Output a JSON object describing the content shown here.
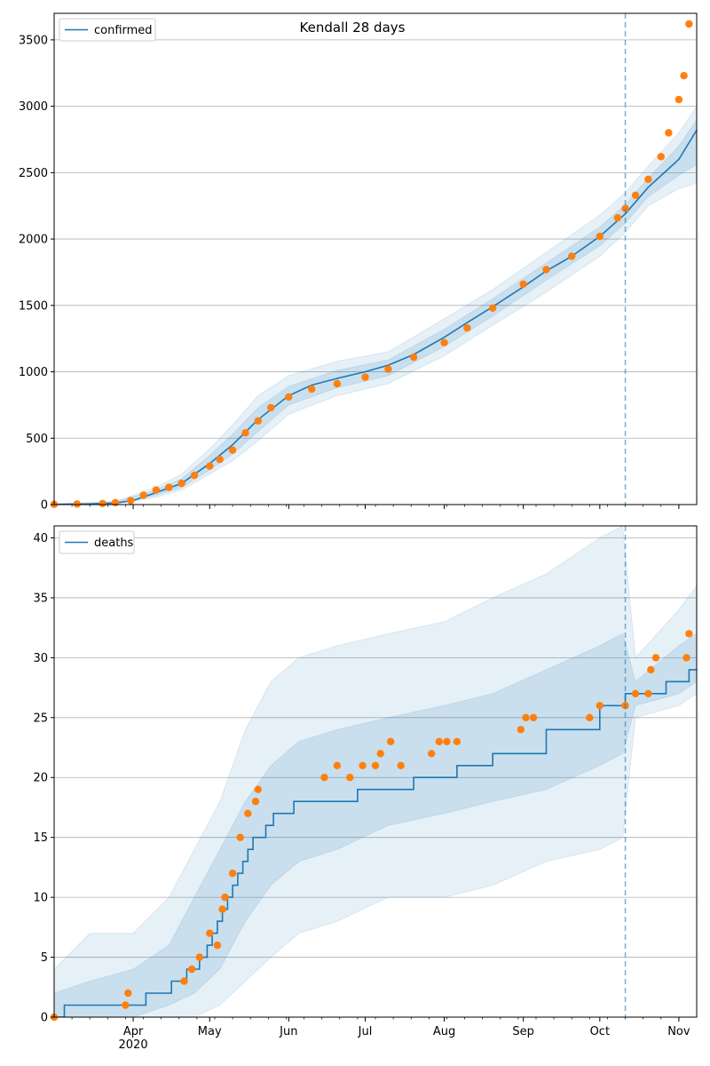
{
  "chart_data": [
    {
      "type": "line",
      "title": "Kendall 28 days",
      "xlabel": "",
      "ylabel": "",
      "xlim": [
        "2020-03-01",
        "2020-11-08"
      ],
      "ylim": [
        0,
        3700
      ],
      "yticks": [
        0,
        500,
        1000,
        1500,
        2000,
        2500,
        3000,
        3500
      ],
      "grid": "horizontal",
      "legend_position": "top-left",
      "forecast_start": "2020-10-11",
      "colors": {
        "model": "#1f77b4",
        "observed": "#ff7f0e"
      },
      "series": [
        {
          "name": "confirmed",
          "kind": "model-median",
          "x": [
            "2020-03-01",
            "2020-03-15",
            "2020-03-25",
            "2020-04-01",
            "2020-04-10",
            "2020-04-20",
            "2020-05-01",
            "2020-05-10",
            "2020-05-20",
            "2020-06-01",
            "2020-06-10",
            "2020-06-20",
            "2020-07-01",
            "2020-07-10",
            "2020-07-20",
            "2020-08-01",
            "2020-08-10",
            "2020-08-20",
            "2020-09-01",
            "2020-09-10",
            "2020-09-20",
            "2020-10-01",
            "2020-10-11",
            "2020-10-20",
            "2020-11-01",
            "2020-11-08"
          ],
          "y": [
            2,
            5,
            12,
            30,
            90,
            160,
            310,
            450,
            640,
            820,
            900,
            950,
            1000,
            1050,
            1130,
            1260,
            1370,
            1490,
            1640,
            1760,
            1870,
            2020,
            2190,
            2390,
            2600,
            2820
          ]
        },
        {
          "name": "",
          "kind": "model-band-outer",
          "x": [
            "2020-03-01",
            "2020-03-25",
            "2020-04-10",
            "2020-04-20",
            "2020-05-01",
            "2020-05-10",
            "2020-05-20",
            "2020-06-01",
            "2020-06-20",
            "2020-07-10",
            "2020-08-01",
            "2020-08-20",
            "2020-09-10",
            "2020-10-01",
            "2020-10-11",
            "2020-10-20",
            "2020-11-01",
            "2020-11-08"
          ],
          "upper": [
            5,
            25,
            130,
            230,
            420,
            600,
            820,
            970,
            1080,
            1150,
            1400,
            1620,
            1900,
            2180,
            2350,
            2550,
            2800,
            3000
          ],
          "lower": [
            0,
            5,
            55,
            110,
            230,
            330,
            480,
            680,
            820,
            910,
            1120,
            1350,
            1600,
            1870,
            2050,
            2250,
            2380,
            2420
          ]
        },
        {
          "name": "",
          "kind": "model-band-inner",
          "x": [
            "2020-03-01",
            "2020-03-25",
            "2020-04-10",
            "2020-04-20",
            "2020-05-01",
            "2020-05-10",
            "2020-05-20",
            "2020-06-01",
            "2020-06-20",
            "2020-07-10",
            "2020-08-01",
            "2020-08-20",
            "2020-09-10",
            "2020-10-01",
            "2020-10-11",
            "2020-10-20",
            "2020-11-01",
            "2020-11-08"
          ],
          "upper": [
            3,
            18,
            110,
            195,
            370,
            530,
            730,
            890,
            1010,
            1090,
            1320,
            1550,
            1820,
            2090,
            2260,
            2460,
            2700,
            2900
          ],
          "lower": [
            1,
            8,
            70,
            130,
            260,
            380,
            550,
            750,
            880,
            970,
            1190,
            1420,
            1690,
            1950,
            2120,
            2320,
            2480,
            2560
          ]
        },
        {
          "name": "",
          "kind": "observed",
          "x": [
            "2020-03-01",
            "2020-03-10",
            "2020-03-20",
            "2020-03-25",
            "2020-03-31",
            "2020-04-05",
            "2020-04-10",
            "2020-04-15",
            "2020-04-20",
            "2020-04-25",
            "2020-05-01",
            "2020-05-05",
            "2020-05-10",
            "2020-05-15",
            "2020-05-20",
            "2020-05-25",
            "2020-06-01",
            "2020-06-10",
            "2020-06-20",
            "2020-07-01",
            "2020-07-10",
            "2020-07-20",
            "2020-08-01",
            "2020-08-10",
            "2020-08-20",
            "2020-09-01",
            "2020-09-10",
            "2020-09-20",
            "2020-10-01",
            "2020-10-08",
            "2020-10-11",
            "2020-10-15",
            "2020-10-20",
            "2020-10-25",
            "2020-10-28",
            "2020-11-01",
            "2020-11-03",
            "2020-11-05"
          ],
          "y": [
            2,
            4,
            8,
            15,
            30,
            70,
            110,
            130,
            160,
            220,
            290,
            340,
            410,
            540,
            630,
            730,
            810,
            870,
            910,
            960,
            1020,
            1110,
            1220,
            1330,
            1480,
            1660,
            1770,
            1870,
            2020,
            2160,
            2230,
            2330,
            2450,
            2620,
            2800,
            3050,
            3230,
            3620
          ]
        }
      ],
      "x_tick_labels": []
    },
    {
      "type": "line",
      "title": "",
      "xlabel": "",
      "ylabel": "",
      "xlim": [
        "2020-03-01",
        "2020-11-08"
      ],
      "ylim": [
        0,
        41
      ],
      "yticks": [
        0,
        5,
        10,
        15,
        20,
        25,
        30,
        35,
        40
      ],
      "grid": "horizontal",
      "legend_position": "top-left",
      "forecast_start": "2020-10-11",
      "colors": {
        "model": "#1f77b4",
        "observed": "#ff7f0e"
      },
      "series": [
        {
          "name": "deaths",
          "kind": "model-median-step",
          "x": [
            "2020-03-01",
            "2020-03-05",
            "2020-03-31",
            "2020-04-06",
            "2020-04-16",
            "2020-04-22",
            "2020-04-27",
            "2020-04-30",
            "2020-05-02",
            "2020-05-04",
            "2020-05-06",
            "2020-05-08",
            "2020-05-10",
            "2020-05-12",
            "2020-05-14",
            "2020-05-16",
            "2020-05-18",
            "2020-05-20",
            "2020-05-23",
            "2020-05-26",
            "2020-05-29",
            "2020-06-03",
            "2020-06-08",
            "2020-06-15",
            "2020-06-28",
            "2020-07-20",
            "2020-08-06",
            "2020-08-20",
            "2020-09-10",
            "2020-10-01",
            "2020-10-11",
            "2020-10-15",
            "2020-10-27",
            "2020-11-05",
            "2020-11-08"
          ],
          "y": [
            0,
            1,
            1,
            2,
            3,
            4,
            5,
            6,
            7,
            8,
            9,
            10,
            11,
            12,
            13,
            14,
            15,
            15,
            16,
            17,
            17,
            18,
            18,
            18,
            19,
            20,
            21,
            22,
            24,
            26,
            27,
            27,
            28,
            29,
            29
          ]
        },
        {
          "name": "",
          "kind": "model-band-outer",
          "x": [
            "2020-03-01",
            "2020-03-15",
            "2020-04-01",
            "2020-04-15",
            "2020-04-25",
            "2020-05-05",
            "2020-05-15",
            "2020-05-25",
            "2020-06-05",
            "2020-06-20",
            "2020-07-10",
            "2020-08-01",
            "2020-08-20",
            "2020-09-10",
            "2020-10-01",
            "2020-10-10",
            "2020-10-15",
            "2020-11-01",
            "2020-11-08"
          ],
          "upper": [
            4,
            7,
            7,
            10,
            14,
            18,
            24,
            28,
            30,
            31,
            32,
            33,
            35,
            37,
            40,
            41,
            30,
            34,
            36
          ],
          "lower": [
            0,
            0,
            0,
            0,
            0,
            1,
            3,
            5,
            7,
            8,
            10,
            10,
            11,
            13,
            14,
            15,
            25,
            26,
            27
          ]
        },
        {
          "name": "",
          "kind": "model-band-inner",
          "x": [
            "2020-03-01",
            "2020-03-15",
            "2020-04-01",
            "2020-04-15",
            "2020-04-25",
            "2020-05-05",
            "2020-05-15",
            "2020-05-25",
            "2020-06-05",
            "2020-06-20",
            "2020-07-10",
            "2020-08-01",
            "2020-08-20",
            "2020-09-10",
            "2020-10-01",
            "2020-10-10",
            "2020-10-15",
            "2020-11-01",
            "2020-11-08"
          ],
          "upper": [
            2,
            3,
            4,
            6,
            10,
            14,
            18,
            21,
            23,
            24,
            25,
            26,
            27,
            29,
            31,
            32,
            28,
            31,
            32
          ],
          "lower": [
            0,
            0,
            0,
            1,
            2,
            4,
            8,
            11,
            13,
            14,
            16,
            17,
            18,
            19,
            21,
            22,
            26,
            27,
            28
          ]
        },
        {
          "name": "",
          "kind": "observed",
          "x": [
            "2020-03-01",
            "2020-03-29",
            "2020-03-30",
            "2020-04-21",
            "2020-04-24",
            "2020-04-27",
            "2020-05-01",
            "2020-05-04",
            "2020-05-06",
            "2020-05-07",
            "2020-05-10",
            "2020-05-13",
            "2020-05-16",
            "2020-05-19",
            "2020-05-20",
            "2020-06-15",
            "2020-06-20",
            "2020-06-25",
            "2020-06-30",
            "2020-07-05",
            "2020-07-07",
            "2020-07-11",
            "2020-07-15",
            "2020-07-27",
            "2020-07-30",
            "2020-08-02",
            "2020-08-06",
            "2020-08-31",
            "2020-09-02",
            "2020-09-05",
            "2020-09-27",
            "2020-10-01",
            "2020-10-11",
            "2020-10-15",
            "2020-10-20",
            "2020-10-21",
            "2020-10-23",
            "2020-11-04",
            "2020-11-05"
          ],
          "y": [
            0,
            1,
            2,
            3,
            4,
            5,
            7,
            6,
            9,
            10,
            12,
            15,
            17,
            18,
            19,
            20,
            21,
            20,
            21,
            21,
            22,
            23,
            21,
            22,
            23,
            23,
            23,
            24,
            25,
            25,
            25,
            26,
            26,
            27,
            27,
            29,
            30,
            30,
            32
          ]
        }
      ],
      "x_tick_labels": [
        "Apr\n2020",
        "May",
        "Jun",
        "Jul",
        "Aug",
        "Sep",
        "Oct",
        "Nov"
      ]
    }
  ]
}
